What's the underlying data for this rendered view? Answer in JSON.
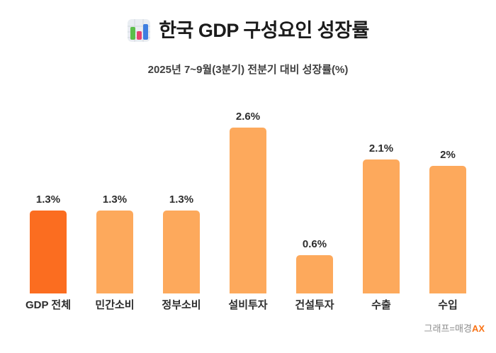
{
  "header": {
    "icon": "bar-chart-emoji",
    "title": "한국 GDP 구성요인 성장률",
    "subtitle": "2025년 7~9월(3분기) 전분기 대비 성장률(%)"
  },
  "credit": {
    "prefix": "그래프=매경",
    "brand": "AX"
  },
  "colors": {
    "highlight_bar": "#FB6D20",
    "bar": "#FDA95C",
    "title_text": "#1B1B1B",
    "label_text": "#2D2D2D",
    "credit_text": "#8C8C8C",
    "brand_text": "#F97316",
    "icon_green": "#5CBE4A",
    "icon_pink": "#E8436F",
    "icon_blue": "#3E7EE0"
  },
  "chart_data": {
    "type": "bar",
    "title": "한국 GDP 구성요인 성장률",
    "subtitle": "2025년 7~9월(3분기) 전분기 대비 성장률(%)",
    "categories": [
      "GDP 전체",
      "민간소비",
      "정부소비",
      "설비투자",
      "건설투자",
      "수출",
      "수입"
    ],
    "values": [
      1.3,
      1.3,
      1.3,
      2.6,
      0.6,
      2.1,
      2.0
    ],
    "value_labels": [
      "1.3%",
      "1.3%",
      "1.3%",
      "2.6%",
      "0.6%",
      "2.1%",
      "2%"
    ],
    "xlabel": "",
    "ylabel": "",
    "ylim": [
      0,
      2.9
    ],
    "grid": false,
    "legend": false,
    "highlight_index": 0,
    "highlight_category": "GDP 전체"
  }
}
